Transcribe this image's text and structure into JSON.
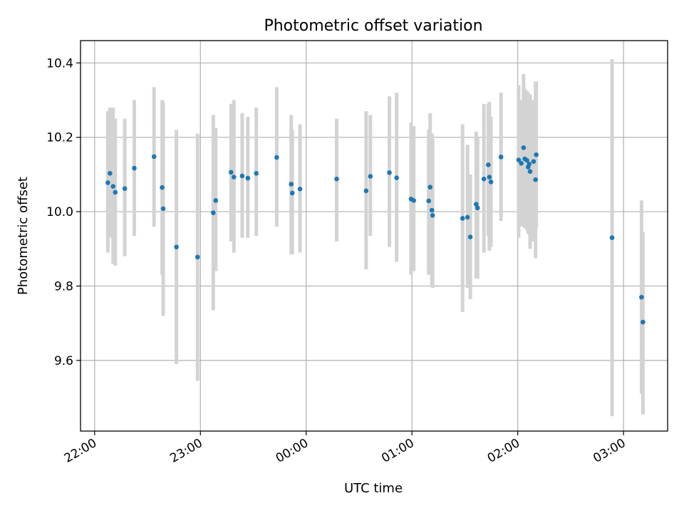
{
  "chart_data": {
    "type": "scatter",
    "title": "Photometric offset variation",
    "xlabel": "UTC time",
    "ylabel": "Photometric offset",
    "grid": true,
    "x_unit": "minutes relative to 00:00 UTC",
    "xlim": [
      -128,
      205
    ],
    "ylim": [
      9.41,
      10.46
    ],
    "x_ticks": [
      {
        "value": -120,
        "label": "22:00"
      },
      {
        "value": -60,
        "label": "23:00"
      },
      {
        "value": 0,
        "label": "00:00"
      },
      {
        "value": 60,
        "label": "01:00"
      },
      {
        "value": 120,
        "label": "02:00"
      },
      {
        "value": 180,
        "label": "03:00"
      }
    ],
    "y_ticks": [
      {
        "value": 9.6,
        "label": "9.6"
      },
      {
        "value": 9.8,
        "label": "9.8"
      },
      {
        "value": 10.0,
        "label": "10.0"
      },
      {
        "value": 10.2,
        "label": "10.2"
      },
      {
        "value": 10.4,
        "label": "10.4"
      }
    ],
    "point_color": "#1f77b4",
    "errorbar_color": "#d3d3d3",
    "series": [
      {
        "points": [
          {
            "x": -112.5,
            "y": 10.078,
            "low": 9.89,
            "high": 10.27
          },
          {
            "x": -111.3,
            "y": 10.103,
            "low": 9.93,
            "high": 10.28
          },
          {
            "x": -109.5,
            "y": 10.068,
            "low": 9.86,
            "high": 10.28
          },
          {
            "x": -108.3,
            "y": 10.052,
            "low": 9.855,
            "high": 10.25
          },
          {
            "x": -102.9,
            "y": 10.062,
            "low": 9.88,
            "high": 10.25
          },
          {
            "x": -97.5,
            "y": 10.117,
            "low": 9.935,
            "high": 10.3
          },
          {
            "x": -86.3,
            "y": 10.148,
            "low": 9.96,
            "high": 10.335
          },
          {
            "x": -81.7,
            "y": 10.065,
            "low": 9.83,
            "high": 10.3
          },
          {
            "x": -81.1,
            "y": 10.008,
            "low": 9.72,
            "high": 10.295
          },
          {
            "x": -73.6,
            "y": 9.905,
            "low": 9.59,
            "high": 10.22
          },
          {
            "x": -61.6,
            "y": 9.878,
            "low": 9.545,
            "high": 10.21
          },
          {
            "x": -52.7,
            "y": 9.997,
            "low": 9.735,
            "high": 10.26
          },
          {
            "x": -51.3,
            "y": 10.03,
            "low": 9.84,
            "high": 10.225
          },
          {
            "x": -42.6,
            "y": 10.106,
            "low": 9.92,
            "high": 10.29
          },
          {
            "x": -41.0,
            "y": 10.093,
            "low": 9.89,
            "high": 10.3
          },
          {
            "x": -36.3,
            "y": 10.096,
            "low": 9.93,
            "high": 10.265
          },
          {
            "x": -33.1,
            "y": 10.09,
            "low": 9.93,
            "high": 10.255
          },
          {
            "x": -28.3,
            "y": 10.103,
            "low": 9.935,
            "high": 10.28
          },
          {
            "x": -16.7,
            "y": 10.146,
            "low": 9.96,
            "high": 10.335
          },
          {
            "x": -8.5,
            "y": 10.074,
            "low": 9.885,
            "high": 10.26
          },
          {
            "x": -7.9,
            "y": 10.05,
            "low": 9.885,
            "high": 10.22
          },
          {
            "x": -3.5,
            "y": 10.061,
            "low": 9.89,
            "high": 10.235
          },
          {
            "x": 17.3,
            "y": 10.088,
            "low": 9.92,
            "high": 10.25
          },
          {
            "x": 34.0,
            "y": 10.056,
            "low": 9.845,
            "high": 10.27
          },
          {
            "x": 36.4,
            "y": 10.095,
            "low": 9.935,
            "high": 10.26
          },
          {
            "x": 47.2,
            "y": 10.105,
            "low": 9.905,
            "high": 10.31
          },
          {
            "x": 51.3,
            "y": 10.091,
            "low": 9.865,
            "high": 10.32
          },
          {
            "x": 59.5,
            "y": 10.034,
            "low": 9.83,
            "high": 10.24
          },
          {
            "x": 61.0,
            "y": 10.03,
            "low": 9.84,
            "high": 10.23
          },
          {
            "x": 69.5,
            "y": 10.029,
            "low": 9.83,
            "high": 10.22
          },
          {
            "x": 70.3,
            "y": 10.066,
            "low": 9.87,
            "high": 10.265
          },
          {
            "x": 71.3,
            "y": 10.004,
            "low": 9.8,
            "high": 10.21
          },
          {
            "x": 71.7,
            "y": 9.99,
            "low": 9.795,
            "high": 10.195
          },
          {
            "x": 88.7,
            "y": 9.982,
            "low": 9.73,
            "high": 10.235
          },
          {
            "x": 91.5,
            "y": 9.985,
            "low": 9.795,
            "high": 10.18
          },
          {
            "x": 93.1,
            "y": 9.932,
            "low": 9.765,
            "high": 10.1
          },
          {
            "x": 96.4,
            "y": 10.02,
            "low": 9.82,
            "high": 10.215
          },
          {
            "x": 97.2,
            "y": 10.01,
            "low": 9.82,
            "high": 10.2
          },
          {
            "x": 100.8,
            "y": 10.088,
            "low": 9.89,
            "high": 10.29
          },
          {
            "x": 103.3,
            "y": 10.126,
            "low": 9.935,
            "high": 10.29
          },
          {
            "x": 103.9,
            "y": 10.093,
            "low": 9.895,
            "high": 10.295
          },
          {
            "x": 104.8,
            "y": 10.08,
            "low": 9.905,
            "high": 10.255
          },
          {
            "x": 110.5,
            "y": 10.147,
            "low": 9.975,
            "high": 10.32
          },
          {
            "x": 120.5,
            "y": 10.139,
            "low": 9.93,
            "high": 10.34
          },
          {
            "x": 122.0,
            "y": 10.13,
            "low": 9.96,
            "high": 10.3
          },
          {
            "x": 123.3,
            "y": 10.172,
            "low": 9.97,
            "high": 10.37
          },
          {
            "x": 124.0,
            "y": 10.142,
            "low": 9.955,
            "high": 10.33
          },
          {
            "x": 125.2,
            "y": 10.138,
            "low": 9.95,
            "high": 10.325
          },
          {
            "x": 125.9,
            "y": 10.12,
            "low": 9.94,
            "high": 10.32
          },
          {
            "x": 126.5,
            "y": 10.128,
            "low": 9.94,
            "high": 10.315
          },
          {
            "x": 127.0,
            "y": 10.108,
            "low": 9.9,
            "high": 10.315
          },
          {
            "x": 129.0,
            "y": 10.135,
            "low": 9.92,
            "high": 10.3
          },
          {
            "x": 130.1,
            "y": 10.086,
            "low": 9.875,
            "high": 10.35
          },
          {
            "x": 130.5,
            "y": 10.153,
            "low": 9.955,
            "high": 10.35
          },
          {
            "x": 173.5,
            "y": 9.93,
            "low": 9.45,
            "high": 10.41
          },
          {
            "x": 190.2,
            "y": 9.77,
            "low": 9.51,
            "high": 10.03
          },
          {
            "x": 191.0,
            "y": 9.703,
            "low": 9.455,
            "high": 9.945
          }
        ]
      }
    ]
  }
}
